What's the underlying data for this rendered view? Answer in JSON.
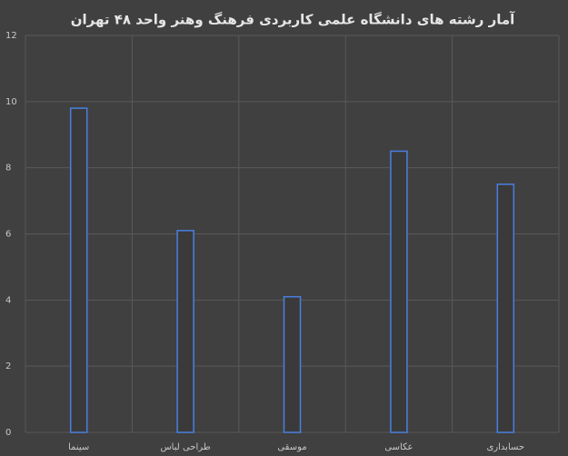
{
  "chart_data": {
    "type": "bar",
    "title": "آمار رشته های  دانشگاه علمی کاربردی فرهنگ وهنر واحد ۴۸ تهران",
    "categories": [
      "سینما",
      "طراحی لباس",
      "موسقی",
      "عکاسی",
      "حسابداری"
    ],
    "values": [
      9.8,
      6.1,
      4.1,
      8.5,
      7.5
    ],
    "color": "#4a7fe0",
    "ylim": [
      0,
      12
    ],
    "yticks": [
      0,
      2,
      4,
      6,
      8,
      10,
      12
    ],
    "grid": true
  }
}
